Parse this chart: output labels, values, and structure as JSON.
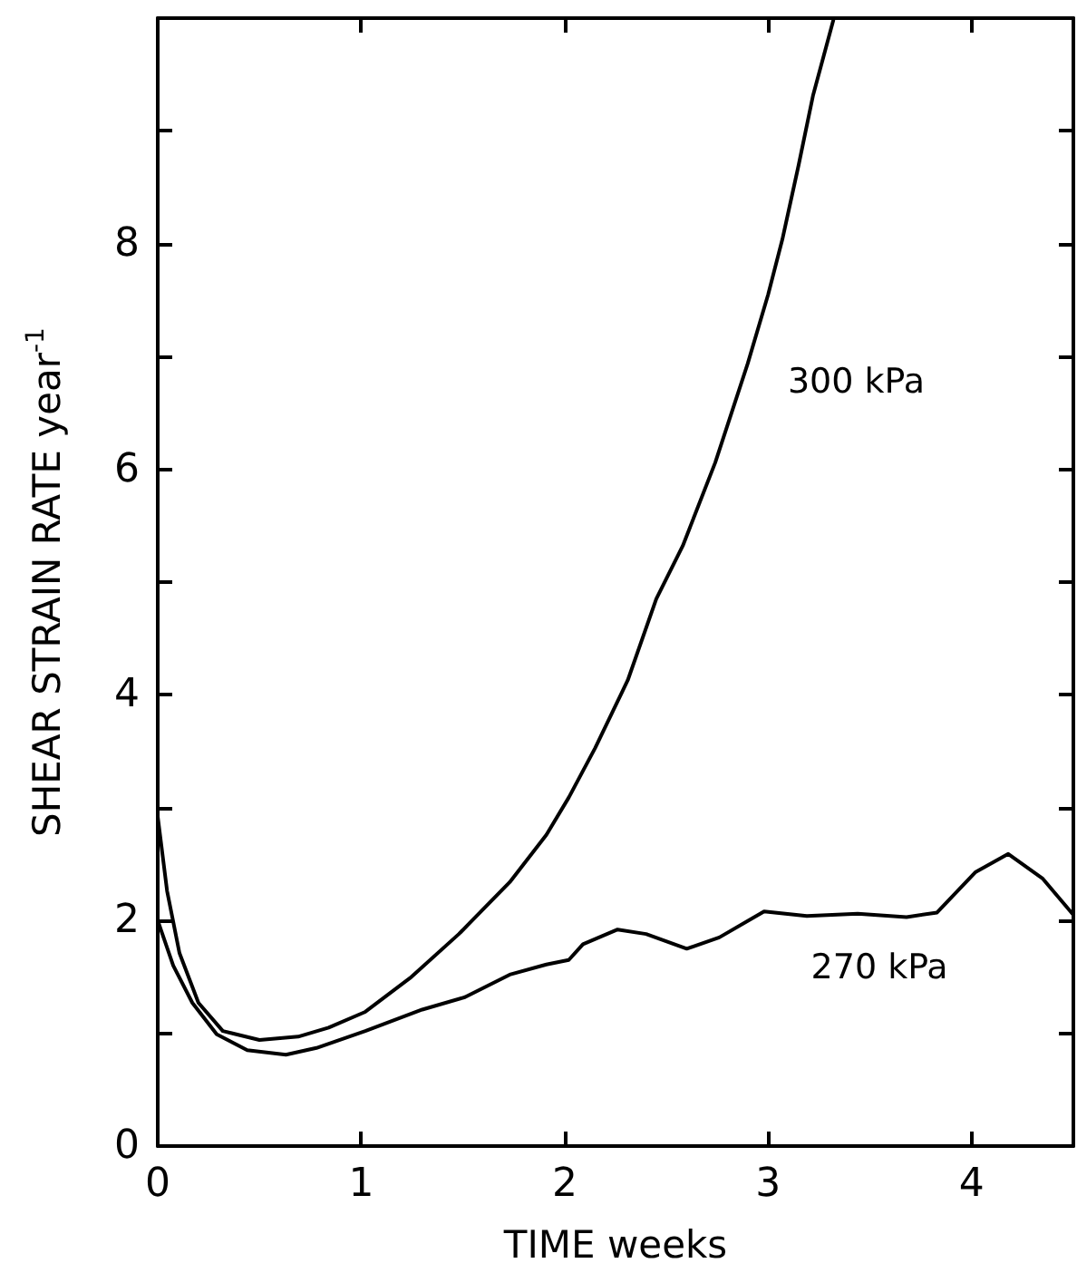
{
  "chart_data": {
    "type": "line",
    "xlabel": "TIME weeks",
    "ylabel": "SHEAR STRAIN RATE year$^{-1}$",
    "xlim": [
      0,
      4.5
    ],
    "xticks": [
      0,
      1,
      2,
      3,
      4
    ],
    "ylim": [
      0,
      10
    ],
    "yticks": [
      0,
      {
        "value": 1,
        "label": null
      },
      2,
      {
        "value": 3,
        "label": null
      },
      4,
      {
        "value": 5,
        "label": null
      },
      6,
      {
        "value": 7,
        "label": null
      },
      8,
      {
        "value": 9,
        "label": null
      }
    ],
    "grid": false,
    "legend": false,
    "marker": "none",
    "line_style": "solid",
    "series": [
      {
        "name": "300 kPa",
        "color": "#000000",
        "x": [
          0,
          0.046,
          0.107,
          0.2,
          0.32,
          0.5,
          0.69,
          0.84,
          1.02,
          1.24,
          1.48,
          1.73,
          1.91,
          2.02,
          2.15,
          2.31,
          2.45,
          2.58,
          2.74,
          2.9,
          3.0,
          3.07,
          3.15,
          3.22,
          3.32
        ],
        "values": [
          2.92,
          2.26,
          1.71,
          1.27,
          1.02,
          0.94,
          0.97,
          1.05,
          1.19,
          1.49,
          1.88,
          2.34,
          2.76,
          3.09,
          3.53,
          4.13,
          4.85,
          5.32,
          6.06,
          6.94,
          7.55,
          8.04,
          8.7,
          9.31,
          9.98
        ]
      },
      {
        "name": "270 kPa",
        "color": "#000000",
        "x": [
          0,
          0.076,
          0.17,
          0.29,
          0.44,
          0.63,
          0.78,
          1.02,
          1.3,
          1.51,
          1.73,
          1.91,
          2.02,
          2.09,
          2.26,
          2.4,
          2.6,
          2.76,
          2.98,
          3.19,
          3.44,
          3.68,
          3.83,
          4.02,
          4.18,
          4.35,
          4.5
        ],
        "values": [
          2.0,
          1.6,
          1.27,
          0.99,
          0.85,
          0.81,
          0.87,
          1.02,
          1.21,
          1.32,
          1.52,
          1.61,
          1.65,
          1.79,
          1.92,
          1.88,
          1.75,
          1.85,
          2.08,
          2.04,
          2.06,
          2.03,
          2.07,
          2.43,
          2.59,
          2.37,
          2.05
        ]
      }
    ]
  }
}
